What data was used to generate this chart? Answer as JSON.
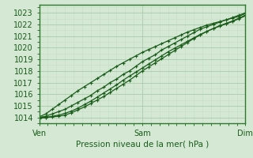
{
  "title": "",
  "xlabel": "Pression niveau de la mer( hPa )",
  "bg_color": "#d4e8d4",
  "grid_major_color": "#aacaaa",
  "grid_minor_color": "#c4dcc4",
  "line_color": "#1a5c1a",
  "border_color": "#2d7a2d",
  "ylim": [
    1013.5,
    1023.7
  ],
  "xlim": [
    0,
    96
  ],
  "xticks": [
    0,
    48,
    96
  ],
  "xtick_labels": [
    "Ven",
    "Sam",
    "Dim"
  ],
  "yticks": [
    1014,
    1015,
    1016,
    1017,
    1018,
    1019,
    1020,
    1021,
    1022,
    1023
  ],
  "line1_x": [
    0,
    3,
    6,
    9,
    12,
    15,
    18,
    21,
    24,
    27,
    30,
    33,
    36,
    39,
    42,
    45,
    48,
    51,
    54,
    57,
    60,
    63,
    66,
    69,
    72,
    75,
    78,
    81,
    84,
    87,
    90,
    93,
    96
  ],
  "line1_y": [
    1014.0,
    1014.1,
    1014.3,
    1014.5,
    1014.7,
    1015.0,
    1015.3,
    1015.6,
    1015.9,
    1016.3,
    1016.6,
    1017.0,
    1017.3,
    1017.7,
    1018.0,
    1018.4,
    1018.8,
    1019.1,
    1019.4,
    1019.8,
    1020.1,
    1020.4,
    1020.7,
    1021.0,
    1021.3,
    1021.6,
    1021.8,
    1022.0,
    1022.2,
    1022.4,
    1022.6,
    1022.8,
    1023.0
  ],
  "line2_x": [
    0,
    3,
    6,
    9,
    12,
    15,
    18,
    21,
    24,
    27,
    30,
    33,
    36,
    39,
    42,
    45,
    48,
    51,
    54,
    57,
    60,
    63,
    66,
    69,
    72,
    75,
    78,
    81,
    84,
    87,
    90,
    93,
    96
  ],
  "line2_y": [
    1014.0,
    1014.0,
    1014.05,
    1014.1,
    1014.2,
    1014.4,
    1014.65,
    1014.9,
    1015.2,
    1015.5,
    1015.8,
    1016.15,
    1016.5,
    1016.85,
    1017.2,
    1017.6,
    1018.0,
    1018.35,
    1018.7,
    1019.05,
    1019.4,
    1019.75,
    1020.1,
    1020.45,
    1020.8,
    1021.1,
    1021.4,
    1021.65,
    1021.9,
    1022.1,
    1022.3,
    1022.55,
    1022.8
  ],
  "line3_x": [
    0,
    3,
    6,
    9,
    12,
    15,
    18,
    21,
    24,
    27,
    30,
    33,
    36,
    39,
    42,
    45,
    48,
    51,
    54,
    57,
    60,
    63,
    66,
    69,
    72,
    75,
    78,
    81,
    84,
    87,
    90,
    93,
    96
  ],
  "line3_y": [
    1014.05,
    1014.3,
    1014.7,
    1015.1,
    1015.5,
    1015.9,
    1016.3,
    1016.65,
    1017.0,
    1017.35,
    1017.7,
    1018.05,
    1018.4,
    1018.7,
    1019.0,
    1019.3,
    1019.6,
    1019.85,
    1020.1,
    1020.35,
    1020.6,
    1020.85,
    1021.1,
    1021.35,
    1021.55,
    1021.75,
    1021.95,
    1022.1,
    1022.25,
    1022.4,
    1022.55,
    1022.7,
    1022.95
  ],
  "line4_x": [
    0,
    3,
    6,
    9,
    12,
    15,
    18,
    21,
    24,
    27,
    30,
    33,
    36,
    39,
    42,
    45,
    48,
    51,
    54,
    57,
    60,
    63,
    66,
    69,
    72,
    75,
    78,
    81,
    84,
    87,
    90,
    93,
    96
  ],
  "line4_y": [
    1013.9,
    1014.0,
    1014.1,
    1014.2,
    1014.35,
    1014.55,
    1014.8,
    1015.1,
    1015.4,
    1015.75,
    1016.1,
    1016.45,
    1016.8,
    1017.2,
    1017.55,
    1017.9,
    1018.25,
    1018.6,
    1018.95,
    1019.3,
    1019.65,
    1019.95,
    1020.25,
    1020.55,
    1020.85,
    1021.15,
    1021.4,
    1021.65,
    1021.85,
    1022.05,
    1022.25,
    1022.5,
    1022.75
  ]
}
